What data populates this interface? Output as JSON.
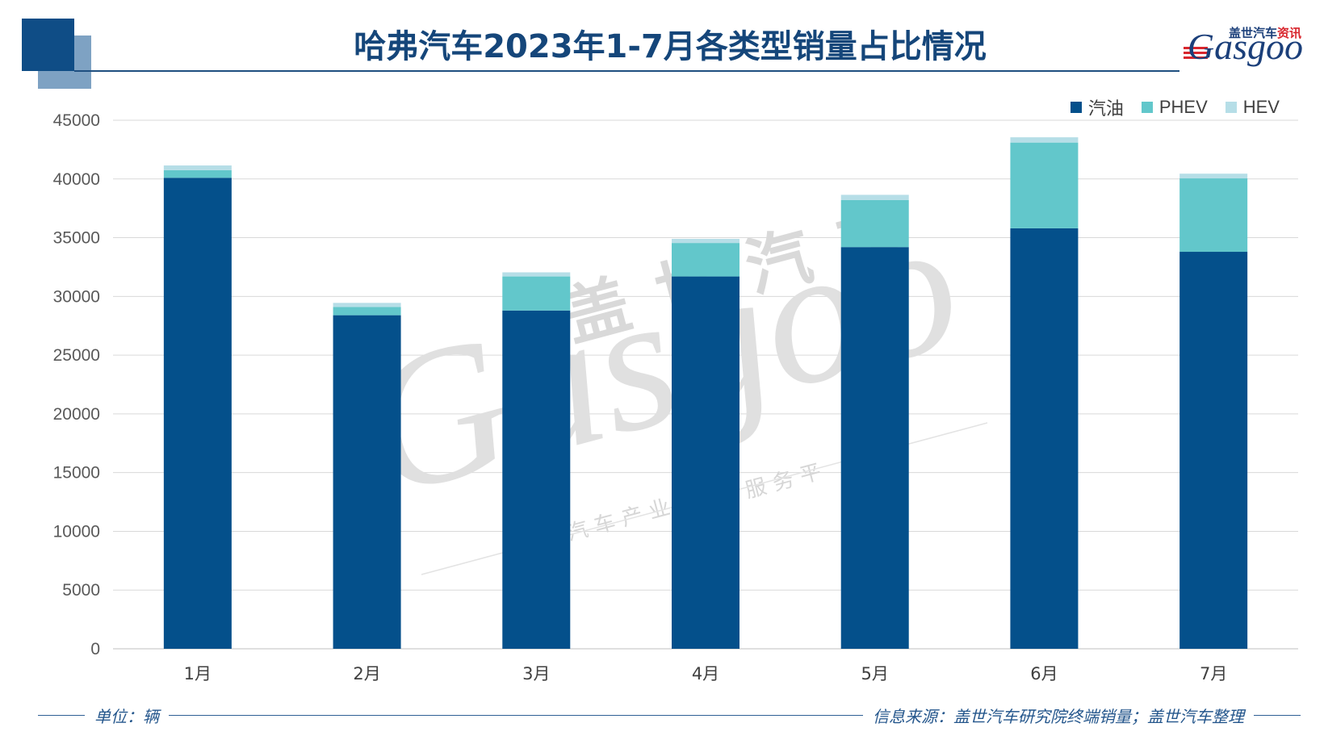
{
  "chart_data": {
    "type": "bar",
    "stacked": true,
    "title": "哈弗汽车2023年1-7月各类型销量占比情况",
    "categories": [
      "1月",
      "2月",
      "3月",
      "4月",
      "5月",
      "6月",
      "7月"
    ],
    "series": [
      {
        "name": "汽油",
        "color": "#04508b",
        "values": [
          40100,
          28400,
          28800,
          31700,
          34200,
          35800,
          33800
        ]
      },
      {
        "name": "PHEV",
        "color": "#62c7cb",
        "values": [
          650,
          700,
          2900,
          2850,
          4000,
          7300,
          6250
        ]
      },
      {
        "name": "HEV",
        "color": "#b6dee7",
        "values": [
          400,
          350,
          350,
          350,
          450,
          450,
          400
        ]
      }
    ],
    "ylim": [
      0,
      45000
    ],
    "yticks": [
      0,
      5000,
      10000,
      15000,
      20000,
      25000,
      30000,
      35000,
      40000,
      45000
    ],
    "grid": true,
    "legend_position": "top-right"
  },
  "footer": {
    "unit": "单位：辆",
    "source": "信息来源：盖世汽车研究院终端销量；盖世汽车整理"
  },
  "logo": {
    "cn_main": "盖世汽车",
    "cn_accent": "资讯",
    "en": "Gasgoo"
  },
  "watermark": {
    "brand_cn": "盖世汽车",
    "brand_en": "Gasgoo",
    "tagline_left": "汽车产业",
    "tagline_right": "服务平"
  },
  "theme": {
    "title": "#15467a",
    "accent_dark": "#0f4d86",
    "accent_light": "#7ea2c3",
    "footer": "#24568c",
    "logo_red": "#d8262d"
  }
}
